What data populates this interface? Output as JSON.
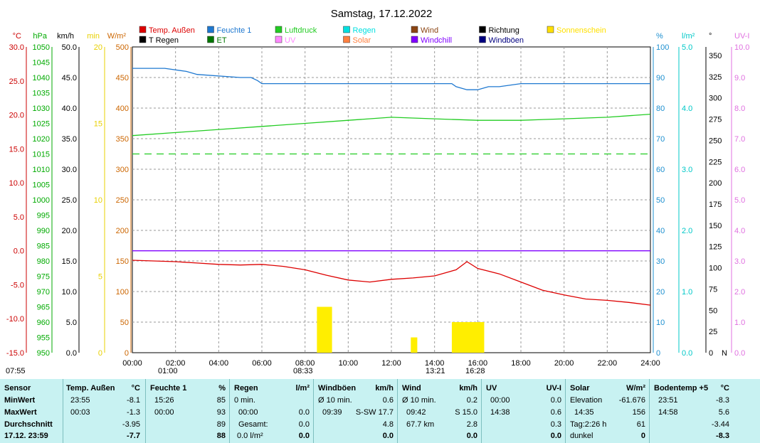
{
  "chart_data": {
    "type": "line",
    "title": "Samstag, 17.12.2022",
    "x_ticks": [
      "00:00",
      "02:00",
      "04:00",
      "06:00",
      "08:00",
      "10:00",
      "12:00",
      "14:00",
      "16:00",
      "18:00",
      "20:00",
      "22:00",
      "24:00"
    ],
    "x_range_hours": [
      0,
      24
    ],
    "axes": {
      "temp": {
        "unit": "°C",
        "color": "#cc0000",
        "range": [
          -15,
          30
        ],
        "ticks": [
          "30.0",
          "25.0",
          "20.0",
          "15.0",
          "10.0",
          "5.0",
          "0.0",
          "-5.0",
          "-10.0",
          "-15.0"
        ]
      },
      "pressure": {
        "unit": "hPa",
        "color": "#00aa00",
        "range": [
          950,
          1050
        ],
        "ticks": [
          "1050",
          "1045",
          "1040",
          "1035",
          "1030",
          "1025",
          "1020",
          "1015",
          "1010",
          "1005",
          "1000",
          "995",
          "990",
          "985",
          "980",
          "975",
          "970",
          "965",
          "960",
          "955",
          "950"
        ]
      },
      "wind": {
        "unit": "km/h",
        "color": "#000000",
        "range": [
          0,
          50
        ],
        "ticks": [
          "50.0",
          "45.0",
          "40.0",
          "35.0",
          "30.0",
          "25.0",
          "20.0",
          "15.0",
          "10.0",
          "5.0",
          "0.0"
        ]
      },
      "minutes": {
        "unit": "min",
        "color": "#e8d000",
        "range": [
          0,
          20
        ],
        "ticks": [
          "20",
          "15",
          "10",
          "5",
          "0"
        ]
      },
      "solar": {
        "unit": "W/m²",
        "color": "#cc6600",
        "range": [
          0,
          500
        ],
        "ticks": [
          "500",
          "450",
          "400",
          "350",
          "300",
          "250",
          "200",
          "150",
          "100",
          "50",
          "0"
        ]
      },
      "humidity": {
        "unit": "%",
        "color": "#1e90d0",
        "range": [
          0,
          100
        ],
        "ticks": [
          "100",
          "90",
          "80",
          "70",
          "60",
          "50",
          "40",
          "30",
          "20",
          "10",
          "0"
        ]
      },
      "rain": {
        "unit": "l/m²",
        "color": "#00c8c8",
        "range": [
          0,
          5
        ],
        "ticks": [
          "5.0",
          "4.0",
          "3.0",
          "2.0",
          "1.0",
          "0.0"
        ]
      },
      "direction": {
        "unit": "°",
        "color": "#000000",
        "range": [
          0,
          360
        ],
        "ticks": [
          "350",
          "325",
          "300",
          "275",
          "250",
          "225",
          "200",
          "175",
          "150",
          "125",
          "100",
          "75",
          "50",
          "25",
          "0"
        ],
        "bottom_label": "N"
      },
      "uv": {
        "unit": "UV-I",
        "color": "#e070e0",
        "range": [
          0,
          10
        ],
        "ticks": [
          "10.0",
          "9.0",
          "8.0",
          "7.0",
          "6.0",
          "5.0",
          "4.0",
          "3.0",
          "2.0",
          "1.0",
          "0.0"
        ]
      }
    },
    "legend": [
      {
        "name": "Temp. Außen",
        "color": "#dd0000"
      },
      {
        "name": "Feuchte 1",
        "color": "#1e78d0"
      },
      {
        "name": "Luftdruck",
        "color": "#22cc22"
      },
      {
        "name": "Regen",
        "color": "#00e0e0"
      },
      {
        "name": "Wind",
        "color": "#8b4513"
      },
      {
        "name": "Richtung",
        "color": "#000000"
      },
      {
        "name": "Sonnenschein",
        "color": "#ffe000"
      },
      {
        "name": "T Regen",
        "color": "#000000"
      },
      {
        "name": "ET",
        "color": "#007700"
      },
      {
        "name": "UV",
        "color": "#ff88ff"
      },
      {
        "name": "Solar",
        "color": "#ff8040"
      },
      {
        "name": "Windchill",
        "color": "#8000ff"
      },
      {
        "name": "Windböen",
        "color": "#000080"
      }
    ],
    "series": [
      {
        "name": "Temp. Außen",
        "axis": "temp",
        "x": [
          0,
          1,
          2,
          3,
          4,
          5,
          6,
          7,
          8,
          9,
          10,
          11,
          12,
          13,
          14,
          15,
          15.5,
          16,
          17,
          18,
          19,
          20,
          21,
          22,
          23,
          24
        ],
        "values": [
          -1.4,
          -1.5,
          -1.6,
          -1.8,
          -2.0,
          -2.1,
          -2.0,
          -2.3,
          -2.8,
          -3.6,
          -4.3,
          -4.6,
          -4.2,
          -4.0,
          -3.7,
          -2.8,
          -1.6,
          -2.6,
          -3.4,
          -4.6,
          -5.8,
          -6.5,
          -7.1,
          -7.3,
          -7.6,
          -8.0
        ]
      },
      {
        "name": "Feuchte 1",
        "axis": "humidity",
        "x": [
          0,
          1.5,
          2.5,
          3,
          5,
          5.5,
          5.8,
          6,
          8,
          9.5,
          10,
          12,
          13,
          14,
          14.8,
          15,
          15.5,
          16,
          16.5,
          17,
          18,
          20,
          22,
          24
        ],
        "values": [
          93,
          93,
          92,
          91,
          90,
          90,
          89,
          88,
          88,
          88,
          88,
          88,
          88,
          88,
          88,
          87,
          86,
          86,
          87,
          87,
          88,
          88,
          88,
          88
        ]
      },
      {
        "name": "Luftdruck",
        "axis": "pressure",
        "x": [
          0,
          2,
          4,
          6,
          8,
          10,
          12,
          14,
          16,
          18,
          20,
          22,
          24
        ],
        "values": [
          1021,
          1022,
          1023,
          1024,
          1025,
          1026,
          1027,
          1026.5,
          1026,
          1026,
          1026.5,
          1027,
          1028
        ]
      },
      {
        "name": "Windchill",
        "axis": "temp",
        "x": [
          0,
          24
        ],
        "values": [
          0,
          0
        ]
      }
    ],
    "reference_lines": [
      {
        "axis": "pressure",
        "value": 1015,
        "style": "dashed",
        "color": "#22cc22"
      }
    ],
    "annotations": [
      {
        "time": "07:55",
        "label": "07:55"
      },
      {
        "time": "01:00",
        "label": "01:00"
      },
      {
        "time": "08:33",
        "label": "08:33"
      },
      {
        "time": "13:21",
        "label": "13:21"
      },
      {
        "time": "16:28",
        "label": "16:28"
      }
    ],
    "sunshine_blocks": [
      {
        "start": 8.55,
        "end": 9.25,
        "minutes": 3
      },
      {
        "start": 12.9,
        "end": 13.2,
        "minutes": 1
      },
      {
        "start": 14.8,
        "end": 16.3,
        "minutes": 2
      }
    ]
  },
  "stats": {
    "sensor": {
      "title": "Sensor",
      "rows": [
        "MinWert",
        "MaxWert",
        "Durchschnitt",
        "17.12. 23:59"
      ]
    },
    "temp": {
      "title": "Temp. Außen",
      "unit": "°C",
      "min_time": "23:55",
      "min": "-8.1",
      "max_time": "00:03",
      "max": "-1.3",
      "avg": "-3.95",
      "cur": "-7.7"
    },
    "feuchte": {
      "title": "Feuchte 1",
      "unit": "%",
      "min_time": "15:26",
      "min": "85",
      "max_time": "00:00",
      "max": "93",
      "avg": "89",
      "cur": "88"
    },
    "regen": {
      "title": "Regen",
      "unit": "l/m²",
      "r1a": "0 min.",
      "r2a": "00:00",
      "r2b": "0.0",
      "r3a": "Gesamt:",
      "r3b": "0.0",
      "r4a": "0.0 l/m²",
      "cur": "0.0"
    },
    "boeen": {
      "title": "Windböen",
      "unit": "km/h",
      "r1a": "Ø 10 min.",
      "r1b": "0.6",
      "r2a": "09:39",
      "r2b": "S-SW 17.7",
      "r3b": "4.8",
      "cur": "0.0"
    },
    "wind": {
      "title": "Wind",
      "unit": "km/h",
      "r1a": "Ø 10 min.",
      "r1b": "0.2",
      "r2a": "09:42",
      "r2b": "S 15.0",
      "r3a": "67.7 km",
      "r3b": "2.8",
      "cur": "0.0"
    },
    "uv": {
      "title": "UV",
      "unit": "UV-I",
      "r1a": "00:00",
      "r1b": "0.0",
      "r2a": "14:38",
      "r2b": "0.6",
      "r3b": "0.3",
      "cur": "0.0"
    },
    "solar": {
      "title": "Solar",
      "unit": "W/m²",
      "r1a": "Elevation",
      "r1b": "-61.676",
      "r2a": "14:35",
      "r2b": "156",
      "r3a": "Tag:2:26 h",
      "r3b": "61",
      "r4a": "dunkel",
      "cur": "0"
    },
    "boden": {
      "title": "Bodentemp +5",
      "unit": "°C",
      "r1a": "23:51",
      "r1b": "-8.3",
      "r2a": "14:58",
      "r2b": "5.6",
      "r3b": "-3.44",
      "cur": "-8.3"
    }
  }
}
